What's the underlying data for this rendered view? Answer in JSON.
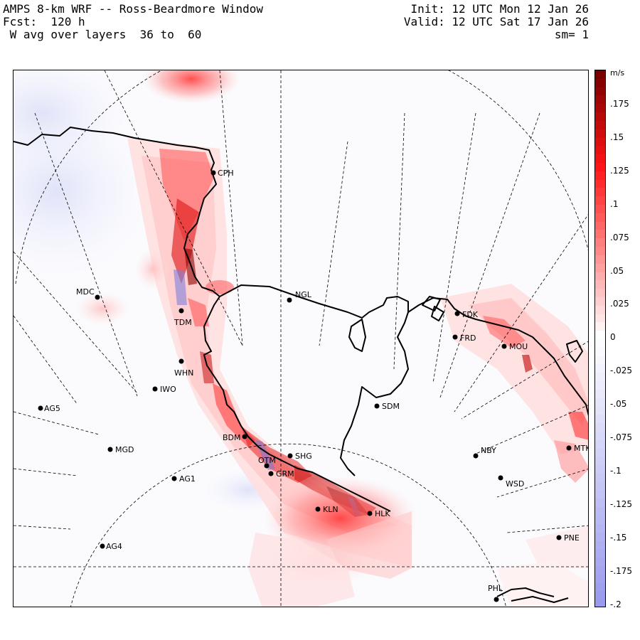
{
  "header": {
    "title": "AMPS 8-km WRF -- Ross-Beardmore Window",
    "forecast": "Fcst:  120 h",
    "field": " W avg over layers  36 to  60",
    "init": "Init: 12 UTC Mon 12 Jan 26",
    "valid": "Valid: 12 UTC Sat 17 Jan 26",
    "smoothing": "sm= 1"
  },
  "colorbar": {
    "unit": "m/s",
    "labels": [
      ".175",
      ".15",
      ".125",
      ".1",
      ".075",
      ".05",
      ".025",
      "0",
      "-.025",
      "-.05",
      "-.075",
      "-.1",
      "-.125",
      "-.15",
      "-.175",
      "-.2"
    ],
    "max_color": "#7a0000",
    "zero_color": "#ffffff",
    "min_color": "#9999ee"
  },
  "stations": [
    {
      "code": "CPH"
    },
    {
      "code": "MDC"
    },
    {
      "code": "TDM"
    },
    {
      "code": "NGL"
    },
    {
      "code": "FDK"
    },
    {
      "code": "FRD"
    },
    {
      "code": "MOU"
    },
    {
      "code": "WHN"
    },
    {
      "code": "IWO"
    },
    {
      "code": "AG5"
    },
    {
      "code": "SDM"
    },
    {
      "code": "BDM"
    },
    {
      "code": "MGD"
    },
    {
      "code": "SHG"
    },
    {
      "code": "OTM"
    },
    {
      "code": "GRM"
    },
    {
      "code": "NBY"
    },
    {
      "code": "MTK"
    },
    {
      "code": "AG1"
    },
    {
      "code": "WSD"
    },
    {
      "code": "KLN"
    },
    {
      "code": "HLK"
    },
    {
      "code": "AG4"
    },
    {
      "code": "PNE"
    },
    {
      "code": "PHL"
    }
  ]
}
